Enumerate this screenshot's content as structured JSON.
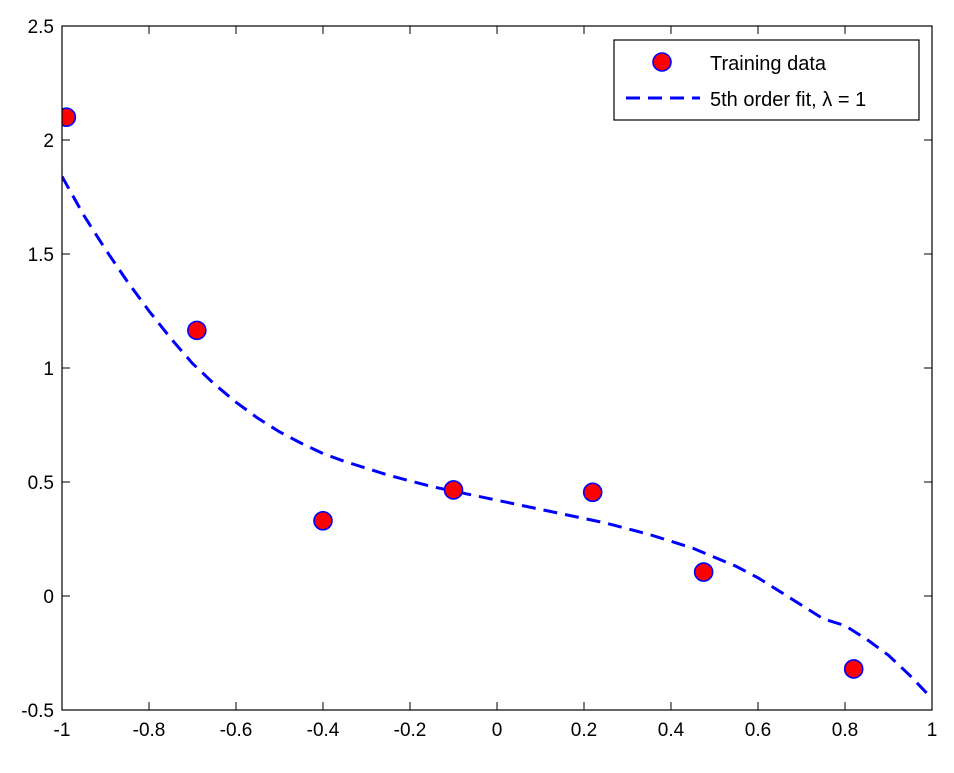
{
  "chart_data": {
    "type": "scatter",
    "title": "",
    "xlabel": "",
    "ylabel": "",
    "xlim": [
      -1,
      1
    ],
    "ylim": [
      -0.5,
      2.5
    ],
    "grid": false,
    "legend_position": "top-right",
    "x_ticks": [
      -1,
      -0.8,
      -0.6,
      -0.4,
      -0.2,
      0,
      0.2,
      0.4,
      0.6,
      0.8,
      1
    ],
    "x_tick_labels": [
      "-1",
      "-0.8",
      "-0.6",
      "-0.4",
      "-0.2",
      "0",
      "0.2",
      "0.4",
      "0.6",
      "0.8",
      "1"
    ],
    "y_ticks": [
      -0.5,
      0,
      0.5,
      1,
      1.5,
      2,
      2.5
    ],
    "y_tick_labels": [
      "-0.5",
      "0",
      "0.5",
      "1",
      "1.5",
      "2",
      "2.5"
    ],
    "series": [
      {
        "name": "Training data",
        "type": "scatter",
        "marker_fill": "#ff0000",
        "marker_edge": "#0000ff",
        "x": [
          -0.99,
          -0.69,
          -0.4,
          -0.1,
          0.22,
          0.475,
          0.82
        ],
        "y": [
          2.1,
          1.165,
          0.33,
          0.465,
          0.455,
          0.105,
          -0.32
        ]
      },
      {
        "name": "5th order fit, λ = 1",
        "type": "line",
        "style": "dashed",
        "color": "#0000ff",
        "x": [
          -1,
          -0.95,
          -0.9,
          -0.85,
          -0.8,
          -0.75,
          -0.7,
          -0.65,
          -0.6,
          -0.55,
          -0.5,
          -0.45,
          -0.4,
          -0.35,
          -0.3,
          -0.25,
          -0.2,
          -0.15,
          -0.1,
          -0.05,
          0,
          0.05,
          0.1,
          0.15,
          0.2,
          0.25,
          0.3,
          0.35,
          0.4,
          0.45,
          0.5,
          0.55,
          0.6,
          0.65,
          0.7,
          0.75,
          0.8,
          0.85,
          0.9,
          0.95,
          1
        ],
        "y": [
          1.84,
          1.67,
          1.52,
          1.38,
          1.25,
          1.13,
          1.02,
          0.93,
          0.85,
          0.78,
          0.72,
          0.67,
          0.625,
          0.59,
          0.56,
          0.53,
          0.505,
          0.48,
          0.46,
          0.44,
          0.42,
          0.4,
          0.38,
          0.36,
          0.34,
          0.32,
          0.295,
          0.27,
          0.24,
          0.21,
          0.17,
          0.13,
          0.08,
          0.02,
          -0.04,
          -0.1,
          -0.13,
          -0.19,
          -0.26,
          -0.35,
          -0.45
        ]
      }
    ]
  }
}
